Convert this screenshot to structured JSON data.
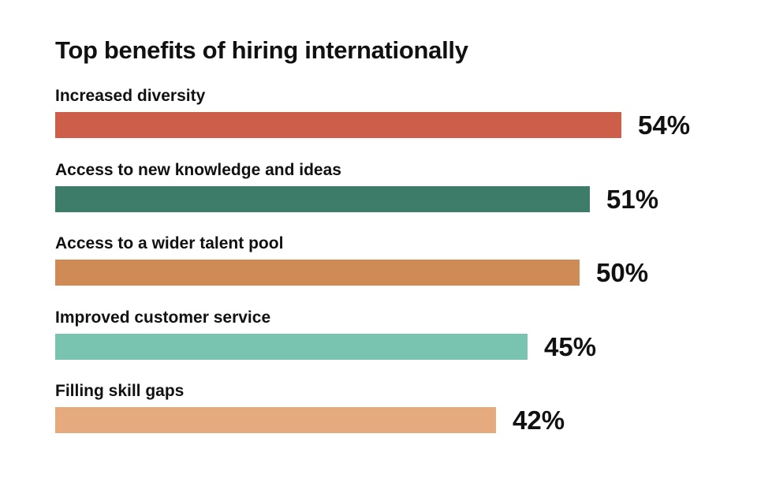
{
  "chart_data": {
    "type": "bar",
    "orientation": "horizontal",
    "title": "Top benefits of hiring internationally",
    "categories": [
      "Increased diversity",
      "Access to new knowledge and ideas",
      "Access to a wider talent pool",
      "Improved customer service",
      "Filling skill gaps"
    ],
    "values": [
      54,
      51,
      50,
      45,
      42
    ],
    "value_labels": [
      "54%",
      "51%",
      "50%",
      "45%",
      "42%"
    ],
    "colors": [
      "#cd5e49",
      "#3e7c6a",
      "#cf8b55",
      "#79c4b1",
      "#e6aa7f"
    ],
    "unit": "%",
    "grid": false,
    "legend": "none"
  }
}
